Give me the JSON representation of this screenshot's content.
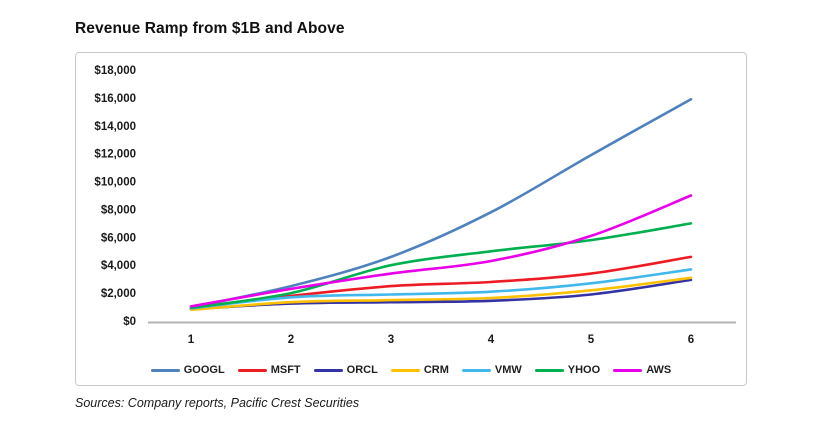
{
  "page": {
    "title": "Revenue Ramp from $1B and Above",
    "source_note": "Sources: Company reports, Pacific Crest Securities"
  },
  "chart_data": {
    "type": "line",
    "title": "Revenue Ramp from $1B and Above",
    "x": [
      1,
      2,
      3,
      4,
      5,
      6
    ],
    "xtick_labels": [
      "1",
      "2",
      "3",
      "4",
      "5",
      "6"
    ],
    "ytick_labels": [
      "$0",
      "$2,000",
      "$4,000",
      "$6,000",
      "$8,000",
      "$10,000",
      "$12,000",
      "$14,000",
      "$16,000",
      "$18,000"
    ],
    "ylim": [
      0,
      18000
    ],
    "ytick_step": 2000,
    "grid": false,
    "legend_position": "bottom",
    "axis_color": "#b3b3b3",
    "series": [
      {
        "name": "GOOGL",
        "color": "#4f81bd",
        "values": [
          1000,
          2500,
          4600,
          7800,
          11900,
          15900
        ]
      },
      {
        "name": "MSFT",
        "color": "#ed1c24",
        "values": [
          900,
          1800,
          2500,
          2800,
          3400,
          4600
        ]
      },
      {
        "name": "ORCL",
        "color": "#3333a6",
        "values": [
          850,
          1250,
          1350,
          1450,
          1900,
          2950
        ]
      },
      {
        "name": "CRM",
        "color": "#ffc000",
        "values": [
          800,
          1350,
          1500,
          1650,
          2200,
          3100
        ]
      },
      {
        "name": "VMW",
        "color": "#41b8ec",
        "values": [
          900,
          1700,
          1900,
          2100,
          2700,
          3700
        ]
      },
      {
        "name": "YHOO",
        "color": "#00b050",
        "values": [
          950,
          2000,
          4000,
          5000,
          5800,
          7000
        ]
      },
      {
        "name": "AWS",
        "color": "#e800e8",
        "values": [
          1050,
          2300,
          3400,
          4300,
          6100,
          9000
        ]
      }
    ]
  }
}
